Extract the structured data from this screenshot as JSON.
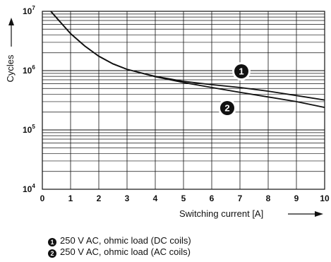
{
  "chart_data": {
    "type": "line",
    "xlabel": "Switching current [A]",
    "ylabel": "Cycles",
    "x_ticks": [
      "0",
      "1",
      "2",
      "3",
      "4",
      "5",
      "6",
      "7",
      "8",
      "9",
      "10"
    ],
    "y_ticks": [
      {
        "base": "10",
        "exp": "4",
        "value": 10000
      },
      {
        "base": "10",
        "exp": "5",
        "value": 100000
      },
      {
        "base": "10",
        "exp": "6",
        "value": 1000000
      },
      {
        "base": "10",
        "exp": "7",
        "value": 10000000
      }
    ],
    "xlim": [
      0,
      10
    ],
    "ylim": [
      10000,
      10000000
    ],
    "y_scale": "log",
    "grid": true,
    "series": [
      {
        "name": "1",
        "label_text": "250 V AC, ohmic load (DC coils)",
        "x": [
          0.3,
          0.5,
          1,
          1.5,
          2,
          2.5,
          3,
          4,
          5,
          6,
          7,
          8,
          9,
          10
        ],
        "y": [
          10000000,
          7800000,
          4200000,
          2600000,
          1750000,
          1300000,
          1050000,
          800000,
          660000,
          580000,
          520000,
          450000,
          380000,
          320000
        ]
      },
      {
        "name": "2",
        "label_text": "250 V AC, ohmic load (AC coils)",
        "x": [
          0.3,
          0.5,
          1,
          1.5,
          2,
          2.5,
          3,
          4,
          5,
          6,
          7,
          8,
          9,
          10
        ],
        "y": [
          10000000,
          7800000,
          4200000,
          2600000,
          1750000,
          1300000,
          1050000,
          790000,
          630000,
          520000,
          430000,
          360000,
          300000,
          240000
        ]
      }
    ]
  }
}
